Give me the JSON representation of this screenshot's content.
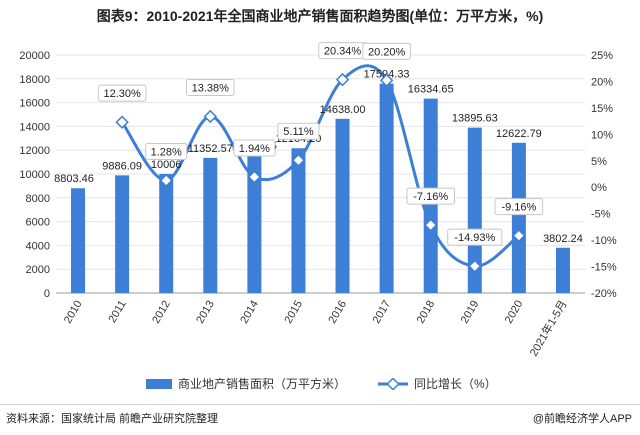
{
  "title": "图表9：2010-2021年全国商业地产销售面积趋势图(单位：万平方米，%)",
  "source": "资料来源：国家统计局 前瞻产业研究院整理",
  "brand": "@前瞻经济学人APP",
  "colors": {
    "bar": "#3d7fd6",
    "line": "#3d7fd6",
    "grid": "#e4e4e4"
  },
  "chart_data": {
    "type": "bar",
    "categories": [
      "2010",
      "2011",
      "2012",
      "2013",
      "2014",
      "2015",
      "2016",
      "2017",
      "2018",
      "2019",
      "2020",
      "2021年1-5月"
    ],
    "series": [
      {
        "name": "商业地产销售面积（万平方米）",
        "type": "bar",
        "axis": "left",
        "values": [
          8803.46,
          9886.09,
          10006.0,
          11352.57,
          11572.75,
          12164.2,
          14638.0,
          17594.33,
          16334.65,
          13895.63,
          12622.79,
          3802.24
        ],
        "labels": [
          "8803.46",
          "9886.09",
          "10006",
          "11352.57",
          "11572.75",
          "12164.20",
          "14638.00",
          "17594.33",
          "16334.65",
          "13895.63",
          "12622.79",
          "3802.24"
        ]
      },
      {
        "name": "同比增长（%）",
        "type": "line",
        "axis": "right",
        "values": [
          null,
          12.3,
          1.28,
          13.38,
          1.94,
          5.11,
          20.34,
          20.2,
          -7.16,
          -14.93,
          -9.16,
          null
        ],
        "labels": [
          "",
          "12.30%",
          "1.28%",
          "13.38%",
          "1.94%",
          "5.11%",
          "20.34%",
          "20.20%",
          "-7.16%",
          "-14.93%",
          "-9.16%",
          ""
        ]
      }
    ],
    "y_left": {
      "min": 0,
      "max": 20000,
      "ticks": [
        "0",
        "2000",
        "4000",
        "6000",
        "8000",
        "10000",
        "12000",
        "14000",
        "16000",
        "18000",
        "20000"
      ]
    },
    "y_right": {
      "min": -20,
      "max": 25,
      "ticks": [
        "-20%",
        "-15%",
        "-10%",
        "-5%",
        "0%",
        "5%",
        "10%",
        "15%",
        "20%",
        "25%"
      ]
    },
    "grid": true,
    "legend_position": "bottom"
  }
}
